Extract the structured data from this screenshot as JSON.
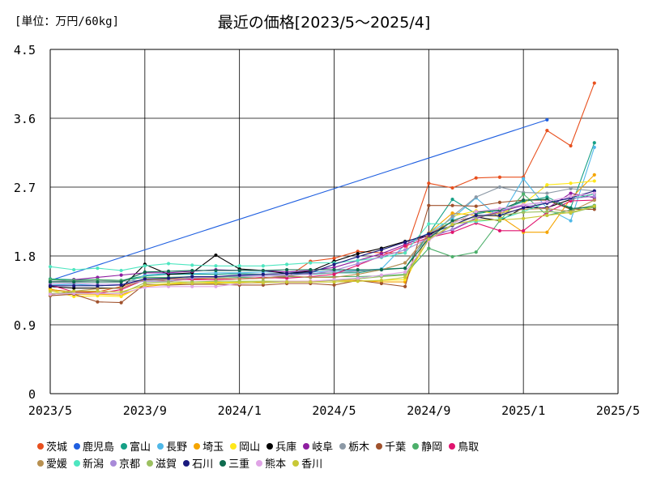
{
  "header": {
    "unit": "[単位：万円/60kg]",
    "title": "最近の価格[2023/5～2025/4]"
  },
  "chart_data": {
    "type": "line",
    "title": "最近の価格[2023/5～2025/4]",
    "unit": "[単位：万円/60kg]",
    "ylim": [
      0,
      4.5
    ],
    "yticks": [
      "0",
      "0.9",
      "1.8",
      "2.7",
      "3.6",
      "4.5"
    ],
    "xticks": [
      "2023/5",
      "2023/9",
      "2024/1",
      "2024/5",
      "2024/9",
      "2025/1",
      "2025/5"
    ],
    "grid": true,
    "legend_position": "bottom",
    "months": [
      "2023/5",
      "2023/6",
      "2023/7",
      "2023/8",
      "2023/9",
      "2023/10",
      "2023/11",
      "2023/12",
      "2024/1",
      "2024/2",
      "2024/3",
      "2024/4",
      "2024/5",
      "2024/6",
      "2024/7",
      "2024/8",
      "2024/9",
      "2024/10",
      "2024/11",
      "2024/12",
      "2025/1",
      "2025/2",
      "2025/3",
      "2025/4"
    ],
    "series": [
      {
        "name": "茨城",
        "color": "#e8501e",
        "values": [
          1.36,
          1.33,
          1.33,
          1.4,
          1.5,
          1.47,
          1.5,
          1.49,
          1.5,
          1.51,
          1.52,
          1.73,
          1.77,
          1.86,
          1.84,
          1.84,
          2.75,
          2.69,
          2.82,
          2.83,
          2.83,
          3.44,
          3.24,
          4.06
        ]
      },
      {
        "name": "鹿児島",
        "color": "#1f5fe0",
        "values": [
          1.48,
          null,
          null,
          null,
          null,
          null,
          null,
          null,
          null,
          null,
          null,
          null,
          null,
          null,
          null,
          null,
          null,
          null,
          null,
          null,
          null,
          3.58,
          null,
          null
        ]
      },
      {
        "name": "富山",
        "color": "#16a086",
        "values": [
          1.5,
          1.49,
          1.49,
          1.48,
          1.54,
          1.56,
          1.56,
          1.56,
          1.57,
          1.56,
          1.57,
          1.56,
          1.58,
          1.58,
          1.63,
          1.64,
          2.09,
          2.54,
          2.35,
          2.4,
          2.51,
          2.57,
          2.43,
          3.28
        ]
      },
      {
        "name": "長野",
        "color": "#4fb8e8",
        "values": [
          1.42,
          1.43,
          1.41,
          1.42,
          1.55,
          1.57,
          1.57,
          1.58,
          1.58,
          1.59,
          1.59,
          1.59,
          1.6,
          1.61,
          1.63,
          1.95,
          2.1,
          2.29,
          2.56,
          2.29,
          2.81,
          2.42,
          2.26,
          3.22
        ]
      },
      {
        "name": "埼玉",
        "color": "#f5a500",
        "values": [
          1.37,
          1.3,
          1.3,
          1.29,
          1.4,
          1.43,
          1.46,
          1.46,
          1.44,
          1.46,
          1.46,
          1.47,
          1.48,
          1.48,
          1.46,
          1.46,
          2.1,
          2.36,
          2.33,
          2.32,
          2.11,
          2.11,
          2.55,
          2.86
        ]
      },
      {
        "name": "岡山",
        "color": "#ffe81a",
        "values": [
          1.35,
          1.27,
          1.28,
          1.27,
          1.42,
          1.44,
          1.46,
          1.45,
          1.46,
          1.47,
          1.46,
          1.46,
          1.46,
          1.47,
          1.48,
          1.49,
          2.02,
          2.32,
          2.39,
          2.35,
          2.48,
          2.73,
          2.75,
          2.78
        ]
      },
      {
        "name": "兵庫",
        "color": "#000000",
        "values": [
          1.4,
          1.38,
          1.38,
          1.38,
          1.69,
          1.56,
          1.58,
          1.81,
          1.63,
          1.61,
          1.57,
          1.6,
          1.73,
          1.83,
          1.9,
          1.99,
          2.07,
          2.25,
          2.31,
          2.26,
          2.43,
          2.43,
          2.54,
          2.61
        ]
      },
      {
        "name": "岐阜",
        "color": "#8e1ea0",
        "values": [
          1.46,
          1.49,
          1.52,
          1.55,
          1.58,
          1.58,
          1.6,
          1.62,
          1.61,
          1.61,
          1.59,
          1.61,
          1.65,
          1.74,
          1.83,
          1.95,
          2.07,
          2.14,
          2.29,
          2.38,
          2.46,
          2.42,
          2.62,
          2.56
        ]
      },
      {
        "name": "栃木",
        "color": "#8c99a6",
        "values": [
          1.47,
          1.47,
          1.48,
          1.47,
          1.48,
          1.49,
          1.52,
          1.52,
          1.53,
          1.54,
          1.54,
          1.57,
          1.58,
          1.6,
          1.62,
          1.71,
          2.03,
          2.32,
          2.57,
          2.7,
          2.63,
          2.62,
          2.68,
          2.65
        ]
      },
      {
        "name": "千葉",
        "color": "#a0522d",
        "values": [
          1.28,
          1.3,
          1.2,
          1.19,
          1.43,
          1.42,
          1.43,
          1.43,
          1.42,
          1.42,
          1.44,
          1.44,
          1.42,
          1.48,
          1.44,
          1.4,
          2.46,
          2.46,
          2.45,
          2.5,
          2.53,
          2.53,
          2.41,
          2.41
        ]
      },
      {
        "name": "静岡",
        "color": "#4caf6a",
        "values": [
          1.49,
          1.48,
          1.49,
          1.48,
          1.52,
          1.52,
          1.53,
          1.53,
          1.52,
          1.51,
          1.53,
          1.52,
          1.53,
          1.53,
          1.54,
          1.56,
          1.9,
          1.79,
          1.85,
          2.26,
          2.61,
          2.33,
          2.4,
          2.46
        ]
      },
      {
        "name": "鳥取",
        "color": "#e0146e",
        "values": [
          1.42,
          1.33,
          1.31,
          1.36,
          1.49,
          1.5,
          1.49,
          1.49,
          1.5,
          1.52,
          1.51,
          1.53,
          1.56,
          1.68,
          1.8,
          1.93,
          2.04,
          2.11,
          2.23,
          2.13,
          2.13,
          2.37,
          2.52,
          2.53
        ]
      },
      {
        "name": "愛媛",
        "color": "#b89050",
        "values": [
          1.29,
          1.34,
          1.37,
          1.38,
          1.49,
          1.5,
          1.51,
          1.51,
          1.5,
          1.51,
          1.54,
          1.52,
          1.52,
          1.56,
          1.62,
          1.71,
          2.09,
          2.25,
          2.31,
          2.36,
          2.41,
          2.42,
          2.38,
          2.53
        ]
      },
      {
        "name": "新潟",
        "color": "#4ee6c0",
        "values": [
          1.66,
          1.62,
          1.64,
          1.61,
          1.67,
          1.7,
          1.68,
          1.67,
          1.67,
          1.67,
          1.69,
          1.71,
          1.71,
          1.74,
          1.78,
          1.84,
          2.22,
          2.22,
          2.25,
          2.28,
          2.38,
          2.5,
          2.55,
          2.61
        ]
      },
      {
        "name": "京都",
        "color": "#a88ad8",
        "values": [
          1.44,
          1.44,
          1.43,
          1.43,
          1.47,
          1.47,
          1.51,
          1.53,
          1.54,
          1.54,
          1.55,
          1.56,
          1.61,
          1.7,
          1.79,
          1.88,
          2.03,
          2.15,
          2.3,
          2.39,
          2.47,
          2.5,
          2.55,
          2.58
        ]
      },
      {
        "name": "滋賀",
        "color": "#9cc060",
        "values": [
          1.31,
          1.32,
          1.31,
          1.31,
          1.45,
          1.46,
          1.46,
          1.47,
          1.47,
          1.47,
          1.47,
          1.47,
          1.48,
          1.5,
          1.53,
          1.55,
          2.01,
          2.2,
          2.32,
          2.33,
          2.37,
          2.38,
          2.36,
          2.44
        ]
      },
      {
        "name": "石川",
        "color": "#1a1a7e",
        "values": [
          1.41,
          1.41,
          1.41,
          1.42,
          1.5,
          1.51,
          1.53,
          1.53,
          1.55,
          1.56,
          1.57,
          1.58,
          1.69,
          1.79,
          1.88,
          1.98,
          2.09,
          2.2,
          2.33,
          2.33,
          2.43,
          2.49,
          2.56,
          2.65
        ]
      },
      {
        "name": "三重",
        "color": "#0e6b4e",
        "values": [
          1.46,
          1.46,
          1.46,
          1.46,
          1.59,
          1.6,
          1.61,
          1.61,
          1.61,
          1.61,
          1.62,
          1.62,
          1.62,
          1.62,
          1.62,
          1.64,
          2.03,
          2.26,
          2.37,
          2.4,
          2.53,
          2.54,
          2.42,
          2.44
        ]
      },
      {
        "name": "熊本",
        "color": "#e0a4e6",
        "values": [
          1.3,
          1.31,
          1.31,
          1.31,
          1.39,
          1.4,
          1.4,
          1.4,
          1.44,
          1.45,
          1.47,
          1.47,
          1.49,
          1.51,
          1.55,
          1.59,
          2.0,
          2.22,
          2.38,
          2.42,
          2.47,
          2.51,
          2.58,
          2.62
        ]
      },
      {
        "name": "香川",
        "color": "#c8c837",
        "values": [
          1.34,
          1.34,
          1.34,
          1.33,
          1.42,
          1.43,
          1.44,
          1.44,
          1.45,
          1.45,
          1.46,
          1.46,
          1.46,
          1.47,
          1.48,
          1.52,
          2.02,
          2.21,
          2.27,
          2.27,
          2.29,
          2.33,
          2.37,
          2.45
        ]
      }
    ]
  }
}
